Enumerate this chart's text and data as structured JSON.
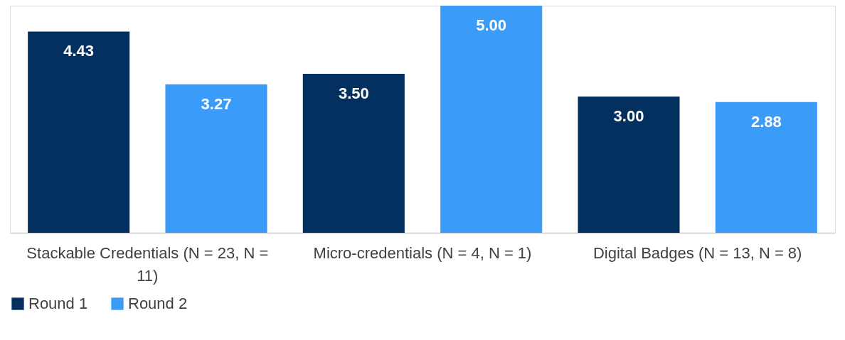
{
  "chart_data": {
    "type": "bar",
    "categories": [
      "Stackable Credentials (N = 23, N = 11)",
      "Micro-credentials (N = 4, N = 1)",
      "Digital Badges (N = 13, N = 8)"
    ],
    "series": [
      {
        "name": "Round 1",
        "color": "#03305e",
        "values": [
          4.43,
          3.5,
          3.0
        ],
        "value_labels": [
          "4.43",
          "3.50",
          "3.00"
        ]
      },
      {
        "name": "Round 2",
        "color": "#3a9bf8",
        "values": [
          3.27,
          5.0,
          2.88
        ],
        "value_labels": [
          "3.27",
          "5.00",
          "2.88"
        ]
      }
    ],
    "legend": "bottom",
    "grid": false
  }
}
